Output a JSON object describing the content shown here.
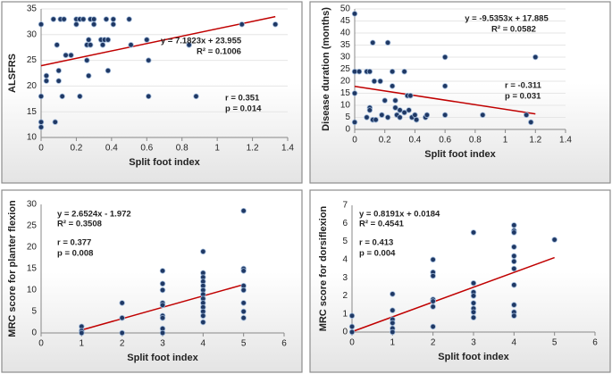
{
  "chart_data": [
    {
      "type": "scatter",
      "xlabel": "Split foot index",
      "ylabel": "ALSFRS",
      "color": "#1f3864",
      "trend_color": "#c00000",
      "grid": true,
      "xlim": [
        0,
        1.4
      ],
      "xticks": [
        0,
        0.2,
        0.4,
        0.6,
        0.8,
        1,
        1.2,
        1.4
      ],
      "ylim": [
        10,
        35
      ],
      "yticks": [
        10,
        15,
        20,
        25,
        30,
        35
      ],
      "annotations": [
        "y = 7.1823x + 23.955",
        "R² = 0.1006",
        "r = 0.351",
        "p = 0.014"
      ],
      "trendline": {
        "slope": 7.1823,
        "intercept": 23.955,
        "xrange": [
          0,
          1.33
        ]
      },
      "x": [
        0,
        0,
        0,
        0,
        0.03,
        0.03,
        0.07,
        0.08,
        0.09,
        0.1,
        0.1,
        0.11,
        0.12,
        0.13,
        0.14,
        0.17,
        0.2,
        0.2,
        0.22,
        0.22,
        0.24,
        0.26,
        0.26,
        0.27,
        0.27,
        0.28,
        0.28,
        0.3,
        0.3,
        0.34,
        0.35,
        0.36,
        0.37,
        0.38,
        0.38,
        0.41,
        0.41,
        0.5,
        0.51,
        0.6,
        0.61,
        0.61,
        0.84,
        0.88,
        1.14,
        1.33
      ],
      "values": [
        32,
        18,
        13,
        12,
        22,
        21,
        33,
        13,
        28,
        23,
        21,
        33,
        18,
        33,
        26,
        26,
        32,
        33,
        33,
        18,
        33,
        25,
        28,
        22,
        29,
        28,
        33,
        33,
        32,
        29,
        28,
        29,
        33,
        23,
        29,
        33,
        32,
        33,
        28,
        29,
        25,
        18,
        28,
        18,
        32,
        32
      ]
    },
    {
      "type": "scatter",
      "xlabel": "Split foot index",
      "ylabel": "Disease duration (months)",
      "color": "#1f3864",
      "trend_color": "#c00000",
      "grid": true,
      "xlim": [
        0,
        1.4
      ],
      "xticks": [
        0,
        0.2,
        0.4,
        0.6,
        0.8,
        1,
        1.2,
        1.4
      ],
      "ylim": [
        0,
        50
      ],
      "yticks": [
        0,
        5,
        10,
        15,
        20,
        25,
        30,
        35,
        40,
        45,
        50
      ],
      "annotations": [
        "y = -9.5353x + 17.885",
        "R² = 0.0582",
        "r = -0.311",
        "p = 0.031"
      ],
      "trendline": {
        "slope": -9.5353,
        "intercept": 17.885,
        "xrange": [
          0,
          1.2
        ]
      },
      "x": [
        0,
        0,
        0,
        0,
        0.03,
        0.08,
        0.08,
        0.1,
        0.1,
        0.1,
        0.12,
        0.12,
        0.13,
        0.14,
        0.17,
        0.18,
        0.2,
        0.22,
        0.22,
        0.25,
        0.25,
        0.27,
        0.27,
        0.28,
        0.3,
        0.3,
        0.33,
        0.33,
        0.35,
        0.36,
        0.37,
        0.38,
        0.4,
        0.41,
        0.47,
        0.48,
        0.6,
        0.6,
        0.6,
        0.85,
        1.14,
        1.17,
        1.2
      ],
      "values": [
        48,
        24,
        15,
        3,
        24,
        5,
        24,
        24,
        9,
        8,
        36,
        4,
        20,
        4,
        20,
        6,
        12,
        36,
        5,
        24,
        18,
        12,
        9,
        6,
        5,
        8,
        24,
        7,
        14,
        8,
        14,
        5,
        6,
        4,
        5,
        6,
        30,
        18,
        6,
        6,
        6,
        3,
        30
      ]
    },
    {
      "type": "scatter",
      "xlabel": "Split foot index",
      "ylabel": "MRC score for planter flexion",
      "color": "#1f3864",
      "trend_color": "#c00000",
      "grid": false,
      "xlim": [
        0,
        6
      ],
      "xticks": [
        0,
        1,
        2,
        3,
        4,
        5,
        6
      ],
      "ylim": [
        0,
        30
      ],
      "yticks": [
        0,
        5,
        10,
        15,
        20,
        25,
        30
      ],
      "annotations": [
        "y = 2.6524x - 1.972",
        "R² = 0.3508",
        "r = 0.377",
        "p = 0.008"
      ],
      "trendline": {
        "slope": 2.6524,
        "intercept": -1.972,
        "xrange": [
          1,
          5
        ]
      },
      "x": [
        1,
        1,
        1,
        2,
        2,
        2,
        3,
        3,
        3,
        3,
        3,
        3,
        3,
        3,
        3,
        4,
        4,
        4,
        4,
        4,
        4,
        4,
        4,
        4,
        4,
        4,
        4,
        4,
        5,
        5,
        5,
        5,
        5,
        5,
        5,
        5
      ],
      "values": [
        1.5,
        0.5,
        0,
        7,
        3.5,
        0,
        14.5,
        11.5,
        10,
        7,
        6.5,
        4,
        3.5,
        1,
        0,
        19,
        14,
        13,
        12,
        11,
        10,
        9,
        8,
        7,
        6,
        5,
        4,
        2.5,
        28.5,
        15,
        14.5,
        11,
        10,
        7,
        5,
        3.5
      ]
    },
    {
      "type": "scatter",
      "xlabel": "Split foot index",
      "ylabel": "MRC score for dorsiflexion",
      "color": "#1f3864",
      "trend_color": "#c00000",
      "grid": false,
      "xlim": [
        0,
        6
      ],
      "xticks": [
        0,
        1,
        2,
        3,
        4,
        5,
        6
      ],
      "ylim": [
        0,
        7
      ],
      "yticks": [
        0,
        1,
        2,
        3,
        4,
        5,
        6,
        7
      ],
      "annotations": [
        "y = 0.8191x + 0.0184",
        "R² = 0.4541",
        "r = 0.413",
        "p = 0.004"
      ],
      "trendline": {
        "slope": 0.8191,
        "intercept": 0.0184,
        "xrange": [
          0,
          5
        ]
      },
      "x": [
        0,
        0,
        0,
        1,
        1,
        1,
        1,
        1,
        1,
        2,
        2,
        2,
        2,
        2,
        2,
        2,
        3,
        3,
        3,
        3,
        3,
        3,
        3,
        3,
        4,
        4,
        4,
        4,
        4,
        4,
        4,
        4,
        4,
        4,
        4,
        5
      ],
      "values": [
        0.9,
        0.3,
        0,
        2.1,
        1.2,
        0.7,
        0.5,
        0.2,
        0,
        4,
        3.3,
        3.1,
        1.8,
        1.7,
        1.4,
        0.3,
        5.5,
        2.7,
        2.2,
        2,
        1.6,
        1.3,
        1.1,
        0.8,
        5.9,
        5.6,
        5.5,
        4.7,
        4.2,
        3.9,
        3.5,
        2.6,
        1.5,
        1.1,
        0.9,
        5.1
      ]
    }
  ]
}
